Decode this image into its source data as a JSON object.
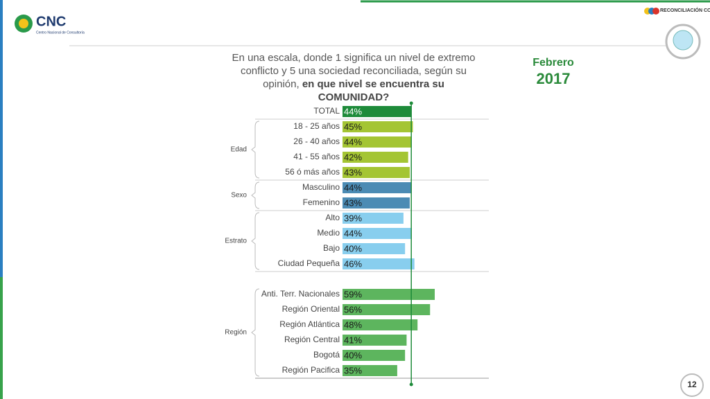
{
  "header": {
    "logo": "CNC",
    "logo_subtitle": "Centro Nacional de Consultoría",
    "partner": "RECONCILIACIÓN COLOMBIA"
  },
  "page_number": "12",
  "chart_data": {
    "type": "bar",
    "title": "En una escala, donde 1 significa un nivel de extremo conflicto y 5 una sociedad reconciliada, según su opinión, ",
    "title_emphasis": "en que nivel se encuentra su COMUNIDAD?",
    "period": "Febrero",
    "year": "2017",
    "total": {
      "category": "TOTAL",
      "value": 44,
      "value_label": "44%",
      "color": "#1e8b3a"
    },
    "groups": [
      {
        "name": "Edad",
        "color": "#a4c533",
        "categories": [
          "18 - 25 años",
          "26 - 40 años",
          "41 - 55 años",
          "56 ó más años"
        ],
        "values": [
          45,
          44,
          42,
          43
        ],
        "value_labels": [
          "45%",
          "44%",
          "42%",
          "43%"
        ]
      },
      {
        "name": "Sexo",
        "color": "#4b8bb4",
        "categories": [
          "Masculino",
          "Femenino"
        ],
        "values": [
          44,
          43
        ],
        "value_labels": [
          "44%",
          "43%"
        ]
      },
      {
        "name": "Estrato",
        "color": "#88ceee",
        "categories": [
          "Alto",
          "Medio",
          "Bajo",
          "Ciudad Pequeña"
        ],
        "values": [
          39,
          44,
          40,
          46
        ],
        "value_labels": [
          "39%",
          "44%",
          "40%",
          "46%"
        ]
      },
      {
        "name": "Región",
        "color": "#5db55e",
        "categories": [
          "Anti. Terr. Nacionales",
          "Región Oriental",
          "Región Atlántica",
          "Región Central",
          "Bogotá",
          "Región Pacifica"
        ],
        "values": [
          59,
          56,
          48,
          41,
          40,
          35
        ],
        "value_labels": [
          "59%",
          "56%",
          "48%",
          "41%",
          "40%",
          "35%"
        ]
      }
    ]
  }
}
